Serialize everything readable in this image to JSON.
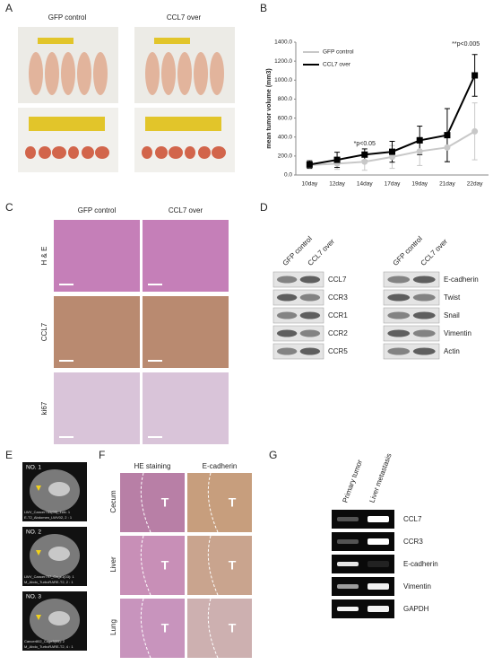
{
  "panels": {
    "A": {
      "letter": "A",
      "columns": [
        "GFP control",
        "CCL7 over"
      ]
    },
    "B": {
      "letter": "B"
    },
    "C": {
      "letter": "C",
      "columns": [
        "GFP control",
        "CCL7 over"
      ],
      "rows": [
        "H & E",
        "CCL7",
        "ki67"
      ]
    },
    "D": {
      "letter": "D",
      "columns": [
        "GFP control",
        "CCL7 over"
      ],
      "left_rows": [
        "CCL7",
        "CCR3",
        "CCR1",
        "CCR2",
        "CCR5"
      ],
      "right_columns": [
        "GFP control",
        "CCL7 over"
      ],
      "right_rows": [
        "E-cadherin",
        "Twist",
        "Snail",
        "Vimentin",
        "Actin"
      ]
    },
    "E": {
      "letter": "E",
      "scans": [
        {
          "label": "NO. 1",
          "caption": [
            "LWV_Cancer785(03)_1wk: 1",
            "E-T2_Abdomen_LWV02, 2 : 1"
          ]
        },
        {
          "label": "NO. 2",
          "caption": [
            "LWV_Cancer797_Cage1(03): 1",
            "M_Abdo_TurboRARE-T2, 2 : 1"
          ]
        },
        {
          "label": "NO. 3",
          "caption": [
            "Cancer802_Cage3(05): 2",
            "M_Abdo_TurboRARE-T2, 4 : 1"
          ]
        }
      ]
    },
    "F": {
      "letter": "F",
      "columns": [
        "HE staining",
        "E-cadherin"
      ],
      "rows": [
        "Cecum",
        "Liver",
        "Lung"
      ],
      "marker": "T"
    },
    "G": {
      "letter": "G",
      "columns": [
        "Primary tumor",
        "Liver metastasis"
      ],
      "rows": [
        "CCL7",
        "CCR3",
        "E-cadherin",
        "Vimentin",
        "GAPDH"
      ]
    }
  },
  "chart_data": {
    "type": "line",
    "y_label": "mean tumor volume (mm3)",
    "categories": [
      "10day",
      "12day",
      "14day",
      "17day",
      "19day",
      "21day",
      "22day"
    ],
    "series": [
      {
        "name": "GFP control",
        "color": "#c8c8c8",
        "marker": "circle",
        "values": [
          105,
          120,
          140,
          190,
          250,
          290,
          460
        ],
        "errors": [
          30,
          60,
          90,
          120,
          150,
          150,
          300
        ]
      },
      {
        "name": "CCL7 over",
        "color": "#000000",
        "marker": "square",
        "values": [
          110,
          160,
          215,
          245,
          365,
          420,
          1050
        ],
        "errors": [
          40,
          80,
          60,
          110,
          150,
          280,
          220
        ]
      }
    ],
    "ylim": [
      0,
      1400
    ],
    "yticks": [
      {
        "value": 0,
        "label": "0.0"
      },
      {
        "value": 200,
        "label": "200.0"
      },
      {
        "value": 400,
        "label": "400.0"
      },
      {
        "value": 600,
        "label": "600.0"
      },
      {
        "value": 800,
        "label": "800.0"
      },
      {
        "value": 1000,
        "label": "1000.0"
      },
      {
        "value": 1200,
        "label": "1200.0"
      },
      {
        "value": 1400,
        "label": "1400.0"
      }
    ],
    "annotations": [
      "*p<0.05",
      "**p<0.005"
    ]
  }
}
